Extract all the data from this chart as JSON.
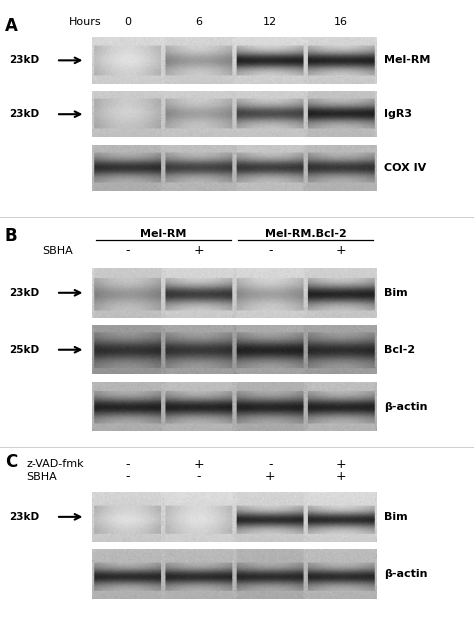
{
  "fig_width": 4.74,
  "fig_height": 6.19,
  "dpi": 100,
  "background_color": "#ffffff",
  "panel_A": {
    "label": "A",
    "time_points": [
      "0",
      "6",
      "12",
      "16"
    ],
    "blots": [
      {
        "name": "Mel-RM",
        "kd": "23kD",
        "lanes": [
          0.12,
          0.4,
          0.88,
          0.88
        ],
        "bg": 0.82
      },
      {
        "name": "IgR3",
        "kd": "23kD",
        "lanes": [
          0.18,
          0.38,
          0.72,
          0.88
        ],
        "bg": 0.78
      },
      {
        "name": "COX IV",
        "kd": null,
        "lanes": [
          0.82,
          0.75,
          0.78,
          0.8
        ],
        "bg": 0.72
      }
    ]
  },
  "panel_B": {
    "label": "B",
    "cell_lines": [
      "Mel-RM",
      "Mel-RM.Bcl-2"
    ],
    "sbha_labels": [
      "-",
      "+",
      "-",
      "+"
    ],
    "blots": [
      {
        "name": "Bim",
        "kd": "23kD",
        "lanes": [
          0.42,
          0.78,
          0.38,
          0.88
        ],
        "bg": 0.8
      },
      {
        "name": "Bcl-2",
        "kd": "25kD",
        "lanes": [
          0.82,
          0.8,
          0.88,
          0.84
        ],
        "bg": 0.62
      },
      {
        "name": "β-actin",
        "kd": null,
        "lanes": [
          0.88,
          0.88,
          0.88,
          0.88
        ],
        "bg": 0.7
      }
    ]
  },
  "panel_C": {
    "label": "C",
    "row1_label": "z-VAD-fmk",
    "row2_label": "SBHA",
    "col_labels": [
      "-",
      "+",
      "-",
      "+"
    ],
    "row2_vals": [
      "-",
      "-",
      "+",
      "+"
    ],
    "blots": [
      {
        "name": "Bim",
        "kd": "23kD",
        "lanes": [
          0.12,
          0.12,
          0.85,
          0.85
        ],
        "bg": 0.82
      },
      {
        "name": "β-actin",
        "kd": null,
        "lanes": [
          0.85,
          0.85,
          0.85,
          0.85
        ],
        "bg": 0.72
      }
    ]
  }
}
